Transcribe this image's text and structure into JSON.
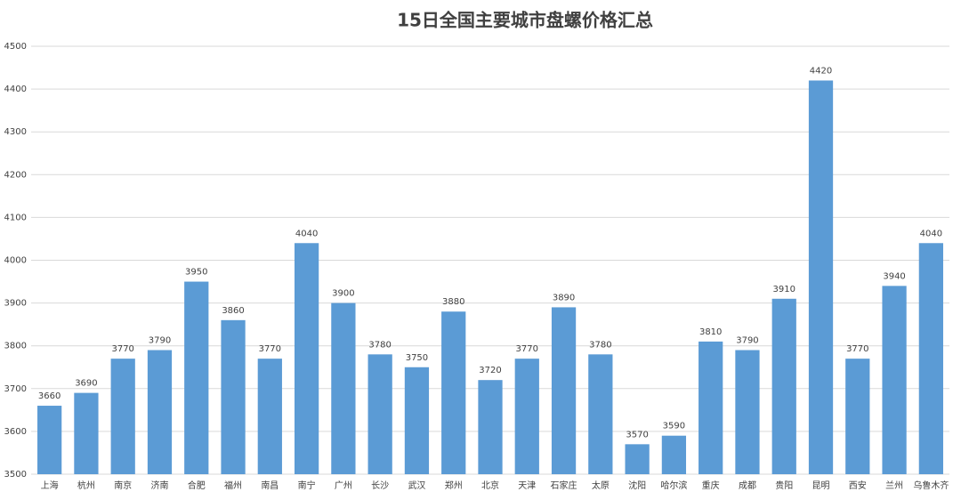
{
  "chart_data": {
    "type": "bar",
    "title": "15日全国主要城市盘螺价格汇总",
    "categories": [
      "上海",
      "杭州",
      "南京",
      "济南",
      "合肥",
      "福州",
      "南昌",
      "南宁",
      "广州",
      "长沙",
      "武汉",
      "郑州",
      "北京",
      "天津",
      "石家庄",
      "太原",
      "沈阳",
      "哈尔滨",
      "重庆",
      "成都",
      "贵阳",
      "昆明",
      "西安",
      "兰州",
      "乌鲁木齐"
    ],
    "values": [
      3660,
      3690,
      3770,
      3790,
      3950,
      3860,
      3770,
      4040,
      3900,
      3780,
      3750,
      3880,
      3720,
      3770,
      3890,
      3780,
      3570,
      3590,
      3810,
      3790,
      3910,
      4420,
      3770,
      3940,
      4040
    ],
    "color": "#5b9bd5",
    "ylim": [
      3500,
      4500
    ],
    "yticks": [
      3500,
      3600,
      3700,
      3800,
      3900,
      4000,
      4100,
      4200,
      4300,
      4400,
      4500
    ],
    "grid": true
  }
}
